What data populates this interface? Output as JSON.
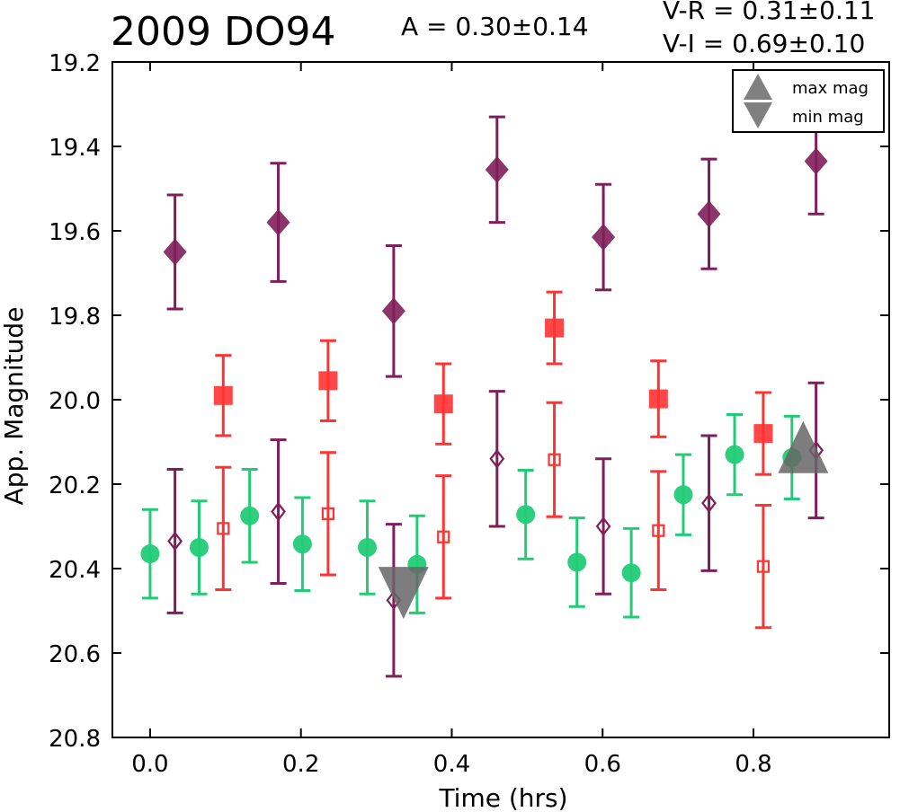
{
  "header": {
    "title": "2009 DO94",
    "amplitude": "A  = 0.30±0.14",
    "color_vr": "V-R = 0.31±0.11",
    "color_vi": "V-I  = 0.69±0.10"
  },
  "chart_data": {
    "type": "scatter",
    "title": "2009 DO94",
    "xlabel": "Time (hrs)",
    "ylabel": "App. Magnitude",
    "xlim": [
      -0.05,
      0.98
    ],
    "ylim": [
      20.8,
      19.2
    ],
    "y_inverted": true,
    "grid": false,
    "xticks": [
      "0.0",
      "0.2",
      "0.4",
      "0.6",
      "0.8"
    ],
    "yticks": [
      "19.2",
      "19.4",
      "19.6",
      "19.8",
      "20.0",
      "20.2",
      "20.4",
      "20.6",
      "20.8"
    ],
    "legend": {
      "placement": "top-right",
      "entries": [
        {
          "label": "max mag",
          "marker": "triangle-up"
        },
        {
          "label": "min mag",
          "marker": "triangle-down"
        }
      ]
    },
    "series": [
      {
        "marker": "diamond",
        "filled": true,
        "color": "#7f1f5a",
        "points": [
          {
            "x": 0.033,
            "y": 19.65,
            "err": 0.135
          },
          {
            "x": 0.17,
            "y": 19.58,
            "err": 0.14
          },
          {
            "x": 0.323,
            "y": 19.79,
            "err": 0.155
          },
          {
            "x": 0.46,
            "y": 19.455,
            "err": 0.125
          },
          {
            "x": 0.601,
            "y": 19.615,
            "err": 0.125
          },
          {
            "x": 0.741,
            "y": 19.56,
            "err": 0.13
          },
          {
            "x": 0.883,
            "y": 19.435,
            "err": 0.125
          }
        ]
      },
      {
        "marker": "square",
        "filled": true,
        "color": "#ff3333",
        "points": [
          {
            "x": 0.097,
            "y": 19.99,
            "err": 0.095
          },
          {
            "x": 0.236,
            "y": 19.955,
            "err": 0.095
          },
          {
            "x": 0.389,
            "y": 20.01,
            "err": 0.095
          },
          {
            "x": 0.536,
            "y": 19.83,
            "err": 0.085
          },
          {
            "x": 0.674,
            "y": 19.998,
            "err": 0.09
          },
          {
            "x": 0.813,
            "y": 20.08,
            "err": 0.097
          }
        ]
      },
      {
        "marker": "diamond",
        "filled": false,
        "color": "#7f1f5a",
        "points": [
          {
            "x": 0.033,
            "y": 20.335,
            "err": 0.17
          },
          {
            "x": 0.17,
            "y": 20.265,
            "err": 0.17
          },
          {
            "x": 0.323,
            "y": 20.475,
            "err": 0.18
          },
          {
            "x": 0.46,
            "y": 20.14,
            "err": 0.16
          },
          {
            "x": 0.601,
            "y": 20.3,
            "err": 0.16
          },
          {
            "x": 0.741,
            "y": 20.245,
            "err": 0.16
          },
          {
            "x": 0.883,
            "y": 20.12,
            "err": 0.16
          }
        ]
      },
      {
        "marker": "square",
        "filled": false,
        "color": "#ff3333",
        "points": [
          {
            "x": 0.097,
            "y": 20.305,
            "err": 0.145
          },
          {
            "x": 0.236,
            "y": 20.27,
            "err": 0.145
          },
          {
            "x": 0.389,
            "y": 20.325,
            "err": 0.145
          },
          {
            "x": 0.536,
            "y": 20.142,
            "err": 0.135
          },
          {
            "x": 0.674,
            "y": 20.31,
            "err": 0.14
          },
          {
            "x": 0.813,
            "y": 20.395,
            "err": 0.145
          }
        ]
      },
      {
        "marker": "circle",
        "filled": true,
        "color": "#22cc77",
        "points": [
          {
            "x": 0.0,
            "y": 20.365,
            "err": 0.105
          },
          {
            "x": 0.065,
            "y": 20.35,
            "err": 0.11
          },
          {
            "x": 0.132,
            "y": 20.275,
            "err": 0.11
          },
          {
            "x": 0.202,
            "y": 20.342,
            "err": 0.11
          },
          {
            "x": 0.288,
            "y": 20.35,
            "err": 0.11
          },
          {
            "x": 0.354,
            "y": 20.39,
            "err": 0.115
          },
          {
            "x": 0.498,
            "y": 20.272,
            "err": 0.105
          },
          {
            "x": 0.566,
            "y": 20.385,
            "err": 0.105
          },
          {
            "x": 0.638,
            "y": 20.41,
            "err": 0.105
          },
          {
            "x": 0.707,
            "y": 20.225,
            "err": 0.095
          },
          {
            "x": 0.775,
            "y": 20.13,
            "err": 0.095
          },
          {
            "x": 0.851,
            "y": 20.137,
            "err": 0.098
          }
        ]
      },
      {
        "marker": "triangle-up",
        "filled": true,
        "color": "#666666",
        "label": "max mag",
        "points": [
          {
            "x": 0.866,
            "y": 20.14
          }
        ]
      },
      {
        "marker": "triangle-down",
        "filled": true,
        "color": "#666666",
        "label": "min mag",
        "points": [
          {
            "x": 0.336,
            "y": 20.43
          }
        ]
      }
    ]
  }
}
